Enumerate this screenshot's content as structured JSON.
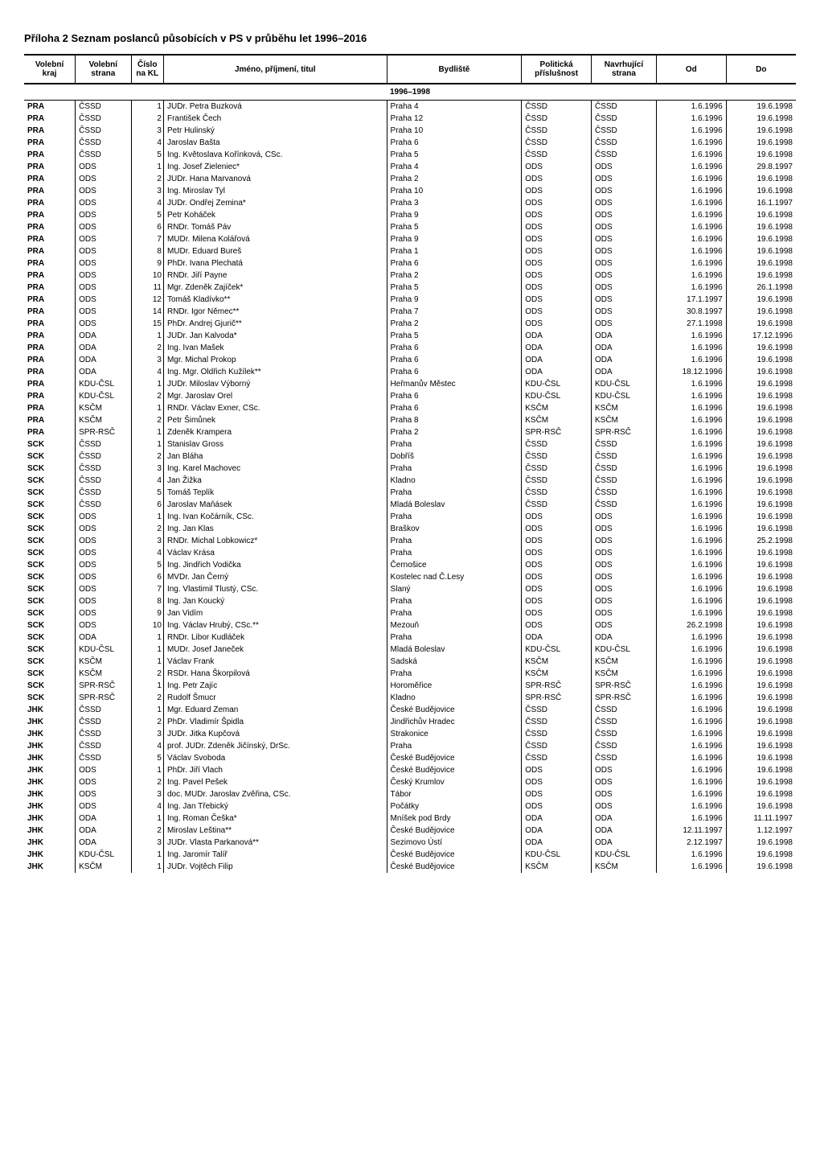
{
  "title": "Příloha 2  Seznam poslanců působících v PS v průběhu let 1996–2016",
  "headers": {
    "kraj": "Volební kraj",
    "strana": "Volební strana",
    "cislo": "Číslo na KL",
    "jmeno": "Jméno, příjmení, titul",
    "bydliste": "Bydliště",
    "prislusnost": "Politická příslušnost",
    "navrhujici": "Navrhující strana",
    "od": "Od",
    "do": "Do"
  },
  "period": "1996–1998",
  "rows": [
    {
      "kraj": "PRA",
      "strana": "ČSSD",
      "cislo": "1",
      "jmeno": "JUDr. Petra Buzková",
      "bydliste": "Praha 4",
      "prislusnost": "ČSSD",
      "navrhujici": "ČSSD",
      "od": "1.6.1996",
      "do": "19.6.1998"
    },
    {
      "kraj": "PRA",
      "strana": "ČSSD",
      "cislo": "2",
      "jmeno": "František Čech",
      "bydliste": "Praha 12",
      "prislusnost": "ČSSD",
      "navrhujici": "ČSSD",
      "od": "1.6.1996",
      "do": "19.6.1998"
    },
    {
      "kraj": "PRA",
      "strana": "ČSSD",
      "cislo": "3",
      "jmeno": "Petr Hulinský",
      "bydliste": "Praha 10",
      "prislusnost": "ČSSD",
      "navrhujici": "ČSSD",
      "od": "1.6.1996",
      "do": "19.6.1998"
    },
    {
      "kraj": "PRA",
      "strana": "ČSSD",
      "cislo": "4",
      "jmeno": "Jaroslav Bašta",
      "bydliste": "Praha 6",
      "prislusnost": "ČSSD",
      "navrhujici": "ČSSD",
      "od": "1.6.1996",
      "do": "19.6.1998"
    },
    {
      "kraj": "PRA",
      "strana": "ČSSD",
      "cislo": "5",
      "jmeno": "Ing. Květoslava Kořínková, CSc.",
      "bydliste": "Praha 5",
      "prislusnost": "ČSSD",
      "navrhujici": "ČSSD",
      "od": "1.6.1996",
      "do": "19.6.1998"
    },
    {
      "kraj": "PRA",
      "strana": "ODS",
      "cislo": "1",
      "jmeno": "Ing. Josef Zieleniec*",
      "bydliste": "Praha 4",
      "prislusnost": "ODS",
      "navrhujici": "ODS",
      "od": "1.6.1996",
      "do": "29.8.1997"
    },
    {
      "kraj": "PRA",
      "strana": "ODS",
      "cislo": "2",
      "jmeno": "JUDr. Hana Marvanová",
      "bydliste": "Praha 2",
      "prislusnost": "ODS",
      "navrhujici": "ODS",
      "od": "1.6.1996",
      "do": "19.6.1998"
    },
    {
      "kraj": "PRA",
      "strana": "ODS",
      "cislo": "3",
      "jmeno": "Ing. Miroslav Tyl",
      "bydliste": "Praha 10",
      "prislusnost": "ODS",
      "navrhujici": "ODS",
      "od": "1.6.1996",
      "do": "19.6.1998"
    },
    {
      "kraj": "PRA",
      "strana": "ODS",
      "cislo": "4",
      "jmeno": "JUDr. Ondřej Zemina*",
      "bydliste": "Praha 3",
      "prislusnost": "ODS",
      "navrhujici": "ODS",
      "od": "1.6.1996",
      "do": "16.1.1997"
    },
    {
      "kraj": "PRA",
      "strana": "ODS",
      "cislo": "5",
      "jmeno": "Petr Koháček",
      "bydliste": "Praha 9",
      "prislusnost": "ODS",
      "navrhujici": "ODS",
      "od": "1.6.1996",
      "do": "19.6.1998"
    },
    {
      "kraj": "PRA",
      "strana": "ODS",
      "cislo": "6",
      "jmeno": "RNDr. Tomáš Páv",
      "bydliste": "Praha 5",
      "prislusnost": "ODS",
      "navrhujici": "ODS",
      "od": "1.6.1996",
      "do": "19.6.1998"
    },
    {
      "kraj": "PRA",
      "strana": "ODS",
      "cislo": "7",
      "jmeno": "MUDr. Milena Kolářová",
      "bydliste": "Praha 9",
      "prislusnost": "ODS",
      "navrhujici": "ODS",
      "od": "1.6.1996",
      "do": "19.6.1998"
    },
    {
      "kraj": "PRA",
      "strana": "ODS",
      "cislo": "8",
      "jmeno": "MUDr. Eduard Bureš",
      "bydliste": "Praha 1",
      "prislusnost": "ODS",
      "navrhujici": "ODS",
      "od": "1.6.1996",
      "do": "19.6.1998"
    },
    {
      "kraj": "PRA",
      "strana": "ODS",
      "cislo": "9",
      "jmeno": "PhDr. Ivana Plechatá",
      "bydliste": "Praha 6",
      "prislusnost": "ODS",
      "navrhujici": "ODS",
      "od": "1.6.1996",
      "do": "19.6.1998"
    },
    {
      "kraj": "PRA",
      "strana": "ODS",
      "cislo": "10",
      "jmeno": "RNDr. Jiří Payne",
      "bydliste": "Praha 2",
      "prislusnost": "ODS",
      "navrhujici": "ODS",
      "od": "1.6.1996",
      "do": "19.6.1998"
    },
    {
      "kraj": "PRA",
      "strana": "ODS",
      "cislo": "11",
      "jmeno": "Mgr. Zdeněk Zajíček*",
      "bydliste": "Praha 5",
      "prislusnost": "ODS",
      "navrhujici": "ODS",
      "od": "1.6.1996",
      "do": "26.1.1998"
    },
    {
      "kraj": "PRA",
      "strana": "ODS",
      "cislo": "12",
      "jmeno": "Tomáš Kladívko**",
      "bydliste": "Praha 9",
      "prislusnost": "ODS",
      "navrhujici": "ODS",
      "od": "17.1.1997",
      "do": "19.6.1998"
    },
    {
      "kraj": "PRA",
      "strana": "ODS",
      "cislo": "14",
      "jmeno": "RNDr. Igor Němec**",
      "bydliste": "Praha 7",
      "prislusnost": "ODS",
      "navrhujici": "ODS",
      "od": "30.8.1997",
      "do": "19.6.1998"
    },
    {
      "kraj": "PRA",
      "strana": "ODS",
      "cislo": "15",
      "jmeno": "PhDr. Andrej Gjurič**",
      "bydliste": "Praha 2",
      "prislusnost": "ODS",
      "navrhujici": "ODS",
      "od": "27.1.1998",
      "do": "19.6.1998"
    },
    {
      "kraj": "PRA",
      "strana": "ODA",
      "cislo": "1",
      "jmeno": "JUDr. Jan Kalvoda*",
      "bydliste": "Praha 5",
      "prislusnost": "ODA",
      "navrhujici": "ODA",
      "od": "1.6.1996",
      "do": "17.12.1996"
    },
    {
      "kraj": "PRA",
      "strana": "ODA",
      "cislo": "2",
      "jmeno": "Ing. Ivan Mašek",
      "bydliste": "Praha 6",
      "prislusnost": "ODA",
      "navrhujici": "ODA",
      "od": "1.6.1996",
      "do": "19.6.1998"
    },
    {
      "kraj": "PRA",
      "strana": "ODA",
      "cislo": "3",
      "jmeno": "Mgr. Michal Prokop",
      "bydliste": "Praha 6",
      "prislusnost": "ODA",
      "navrhujici": "ODA",
      "od": "1.6.1996",
      "do": "19.6.1998"
    },
    {
      "kraj": "PRA",
      "strana": "ODA",
      "cislo": "4",
      "jmeno": "Ing. Mgr. Oldřich Kužílek**",
      "bydliste": "Praha 6",
      "prislusnost": "ODA",
      "navrhujici": "ODA",
      "od": "18.12.1996",
      "do": "19.6.1998"
    },
    {
      "kraj": "PRA",
      "strana": "KDU-ČSL",
      "cislo": "1",
      "jmeno": "JUDr. Miloslav Výborný",
      "bydliste": "Heřmanův Městec",
      "prislusnost": "KDU-ČSL",
      "navrhujici": "KDU-ČSL",
      "od": "1.6.1996",
      "do": "19.6.1998"
    },
    {
      "kraj": "PRA",
      "strana": "KDU-ČSL",
      "cislo": "2",
      "jmeno": "Mgr. Jaroslav Orel",
      "bydliste": "Praha 6",
      "prislusnost": "KDU-ČSL",
      "navrhujici": "KDU-ČSL",
      "od": "1.6.1996",
      "do": "19.6.1998"
    },
    {
      "kraj": "PRA",
      "strana": "KSČM",
      "cislo": "1",
      "jmeno": "RNDr. Václav Exner, CSc.",
      "bydliste": "Praha 6",
      "prislusnost": "KSČM",
      "navrhujici": "KSČM",
      "od": "1.6.1996",
      "do": "19.6.1998"
    },
    {
      "kraj": "PRA",
      "strana": "KSČM",
      "cislo": "2",
      "jmeno": "Petr Šimůnek",
      "bydliste": "Praha 8",
      "prislusnost": "KSČM",
      "navrhujici": "KSČM",
      "od": "1.6.1996",
      "do": "19.6.1998"
    },
    {
      "kraj": "PRA",
      "strana": "SPR-RSČ",
      "cislo": "1",
      "jmeno": "Zdeněk Krampera",
      "bydliste": "Praha 2",
      "prislusnost": "SPR-RSČ",
      "navrhujici": "SPR-RSČ",
      "od": "1.6.1996",
      "do": "19.6.1998"
    },
    {
      "kraj": "SCK",
      "strana": "ČSSD",
      "cislo": "1",
      "jmeno": "Stanislav Gross",
      "bydliste": "Praha",
      "prislusnost": "ČSSD",
      "navrhujici": "ČSSD",
      "od": "1.6.1996",
      "do": "19.6.1998"
    },
    {
      "kraj": "SCK",
      "strana": "ČSSD",
      "cislo": "2",
      "jmeno": "Jan Bláha",
      "bydliste": "Dobříš",
      "prislusnost": "ČSSD",
      "navrhujici": "ČSSD",
      "od": "1.6.1996",
      "do": "19.6.1998"
    },
    {
      "kraj": "SCK",
      "strana": "ČSSD",
      "cislo": "3",
      "jmeno": "Ing. Karel Machovec",
      "bydliste": "Praha",
      "prislusnost": "ČSSD",
      "navrhujici": "ČSSD",
      "od": "1.6.1996",
      "do": "19.6.1998"
    },
    {
      "kraj": "SCK",
      "strana": "ČSSD",
      "cislo": "4",
      "jmeno": "Jan Žižka",
      "bydliste": "Kladno",
      "prislusnost": "ČSSD",
      "navrhujici": "ČSSD",
      "od": "1.6.1996",
      "do": "19.6.1998"
    },
    {
      "kraj": "SCK",
      "strana": "ČSSD",
      "cislo": "5",
      "jmeno": "Tomáš Teplík",
      "bydliste": "Praha",
      "prislusnost": "ČSSD",
      "navrhujici": "ČSSD",
      "od": "1.6.1996",
      "do": "19.6.1998"
    },
    {
      "kraj": "SCK",
      "strana": "ČSSD",
      "cislo": "6",
      "jmeno": "Jaroslav Maňásek",
      "bydliste": "Mladá Boleslav",
      "prislusnost": "ČSSD",
      "navrhujici": "ČSSD",
      "od": "1.6.1996",
      "do": "19.6.1998"
    },
    {
      "kraj": "SCK",
      "strana": "ODS",
      "cislo": "1",
      "jmeno": "Ing. Ivan Kočárník, CSc.",
      "bydliste": "Praha",
      "prislusnost": "ODS",
      "navrhujici": "ODS",
      "od": "1.6.1996",
      "do": "19.6.1998"
    },
    {
      "kraj": "SCK",
      "strana": "ODS",
      "cislo": "2",
      "jmeno": "Ing. Jan Klas",
      "bydliste": "Braškov",
      "prislusnost": "ODS",
      "navrhujici": "ODS",
      "od": "1.6.1996",
      "do": "19.6.1998"
    },
    {
      "kraj": "SCK",
      "strana": "ODS",
      "cislo": "3",
      "jmeno": "RNDr. Michal Lobkowicz*",
      "bydliste": "Praha",
      "prislusnost": "ODS",
      "navrhujici": "ODS",
      "od": "1.6.1996",
      "do": "25.2.1998"
    },
    {
      "kraj": "SCK",
      "strana": "ODS",
      "cislo": "4",
      "jmeno": "Václav Krása",
      "bydliste": "Praha",
      "prislusnost": "ODS",
      "navrhujici": "ODS",
      "od": "1.6.1996",
      "do": "19.6.1998"
    },
    {
      "kraj": "SCK",
      "strana": "ODS",
      "cislo": "5",
      "jmeno": "Ing. Jindřich Vodička",
      "bydliste": "Černošice",
      "prislusnost": "ODS",
      "navrhujici": "ODS",
      "od": "1.6.1996",
      "do": "19.6.1998"
    },
    {
      "kraj": "SCK",
      "strana": "ODS",
      "cislo": "6",
      "jmeno": "MVDr. Jan Černý",
      "bydliste": "Kostelec nad Č.Lesy",
      "prislusnost": "ODS",
      "navrhujici": "ODS",
      "od": "1.6.1996",
      "do": "19.6.1998"
    },
    {
      "kraj": "SCK",
      "strana": "ODS",
      "cislo": "7",
      "jmeno": "Ing. Vlastimil Tlustý, CSc.",
      "bydliste": "Slaný",
      "prislusnost": "ODS",
      "navrhujici": "ODS",
      "od": "1.6.1996",
      "do": "19.6.1998"
    },
    {
      "kraj": "SCK",
      "strana": "ODS",
      "cislo": "8",
      "jmeno": "Ing. Jan Koucký",
      "bydliste": "Praha",
      "prislusnost": "ODS",
      "navrhujici": "ODS",
      "od": "1.6.1996",
      "do": "19.6.1998"
    },
    {
      "kraj": "SCK",
      "strana": "ODS",
      "cislo": "9",
      "jmeno": "Jan Vidím",
      "bydliste": "Praha",
      "prislusnost": "ODS",
      "navrhujici": "ODS",
      "od": "1.6.1996",
      "do": "19.6.1998"
    },
    {
      "kraj": "SCK",
      "strana": "ODS",
      "cislo": "10",
      "jmeno": "Ing. Václav Hrubý, CSc.**",
      "bydliste": "Mezouň",
      "prislusnost": "ODS",
      "navrhujici": "ODS",
      "od": "26.2.1998",
      "do": "19.6.1998"
    },
    {
      "kraj": "SCK",
      "strana": "ODA",
      "cislo": "1",
      "jmeno": "RNDr. Libor Kudláček",
      "bydliste": "Praha",
      "prislusnost": "ODA",
      "navrhujici": "ODA",
      "od": "1.6.1996",
      "do": "19.6.1998"
    },
    {
      "kraj": "SCK",
      "strana": "KDU-ČSL",
      "cislo": "1",
      "jmeno": "MUDr. Josef Janeček",
      "bydliste": "Mladá Boleslav",
      "prislusnost": "KDU-ČSL",
      "navrhujici": "KDU-ČSL",
      "od": "1.6.1996",
      "do": "19.6.1998"
    },
    {
      "kraj": "SCK",
      "strana": "KSČM",
      "cislo": "1",
      "jmeno": "Václav Frank",
      "bydliste": "Sadská",
      "prislusnost": "KSČM",
      "navrhujici": "KSČM",
      "od": "1.6.1996",
      "do": "19.6.1998"
    },
    {
      "kraj": "SCK",
      "strana": "KSČM",
      "cislo": "2",
      "jmeno": "RSDr. Hana Škorpilová",
      "bydliste": "Praha",
      "prislusnost": "KSČM",
      "navrhujici": "KSČM",
      "od": "1.6.1996",
      "do": "19.6.1998"
    },
    {
      "kraj": "SCK",
      "strana": "SPR-RSČ",
      "cislo": "1",
      "jmeno": "Ing. Petr Zajíc",
      "bydliste": "Horoměřice",
      "prislusnost": "SPR-RSČ",
      "navrhujici": "SPR-RSČ",
      "od": "1.6.1996",
      "do": "19.6.1998"
    },
    {
      "kraj": "SCK",
      "strana": "SPR-RSČ",
      "cislo": "2",
      "jmeno": "Rudolf Šmucr",
      "bydliste": "Kladno",
      "prislusnost": "SPR-RSČ",
      "navrhujici": "SPR-RSČ",
      "od": "1.6.1996",
      "do": "19.6.1998"
    },
    {
      "kraj": "JHK",
      "strana": "ČSSD",
      "cislo": "1",
      "jmeno": "Mgr. Eduard Zeman",
      "bydliste": "České Budějovice",
      "prislusnost": "ČSSD",
      "navrhujici": "ČSSD",
      "od": "1.6.1996",
      "do": "19.6.1998"
    },
    {
      "kraj": "JHK",
      "strana": "ČSSD",
      "cislo": "2",
      "jmeno": "PhDr. Vladimír Špidla",
      "bydliste": "Jindřichův Hradec",
      "prislusnost": "ČSSD",
      "navrhujici": "ČSSD",
      "od": "1.6.1996",
      "do": "19.6.1998"
    },
    {
      "kraj": "JHK",
      "strana": "ČSSD",
      "cislo": "3",
      "jmeno": "JUDr. Jitka Kupčová",
      "bydliste": "Strakonice",
      "prislusnost": "ČSSD",
      "navrhujici": "ČSSD",
      "od": "1.6.1996",
      "do": "19.6.1998"
    },
    {
      "kraj": "JHK",
      "strana": "ČSSD",
      "cislo": "4",
      "jmeno": "prof. JUDr. Zdeněk Jičínský, DrSc.",
      "bydliste": "Praha",
      "prislusnost": "ČSSD",
      "navrhujici": "ČSSD",
      "od": "1.6.1996",
      "do": "19.6.1998"
    },
    {
      "kraj": "JHK",
      "strana": "ČSSD",
      "cislo": "5",
      "jmeno": "Václav Svoboda",
      "bydliste": "České Budějovice",
      "prislusnost": "ČSSD",
      "navrhujici": "ČSSD",
      "od": "1.6.1996",
      "do": "19.6.1998"
    },
    {
      "kraj": "JHK",
      "strana": "ODS",
      "cislo": "1",
      "jmeno": "PhDr. Jiří Vlach",
      "bydliste": "České Budějovice",
      "prislusnost": "ODS",
      "navrhujici": "ODS",
      "od": "1.6.1996",
      "do": "19.6.1998"
    },
    {
      "kraj": "JHK",
      "strana": "ODS",
      "cislo": "2",
      "jmeno": "Ing. Pavel Pešek",
      "bydliste": "Český Krumlov",
      "prislusnost": "ODS",
      "navrhujici": "ODS",
      "od": "1.6.1996",
      "do": "19.6.1998"
    },
    {
      "kraj": "JHK",
      "strana": "ODS",
      "cislo": "3",
      "jmeno": "doc. MUDr. Jaroslav Zvěřina, CSc.",
      "bydliste": "Tábor",
      "prislusnost": "ODS",
      "navrhujici": "ODS",
      "od": "1.6.1996",
      "do": "19.6.1998"
    },
    {
      "kraj": "JHK",
      "strana": "ODS",
      "cislo": "4",
      "jmeno": "Ing. Jan Třebický",
      "bydliste": "Počátky",
      "prislusnost": "ODS",
      "navrhujici": "ODS",
      "od": "1.6.1996",
      "do": "19.6.1998"
    },
    {
      "kraj": "JHK",
      "strana": "ODA",
      "cislo": "1",
      "jmeno": "Ing. Roman Češka*",
      "bydliste": "Mníšek pod Brdy",
      "prislusnost": "ODA",
      "navrhujici": "ODA",
      "od": "1.6.1996",
      "do": "11.11.1997"
    },
    {
      "kraj": "JHK",
      "strana": "ODA",
      "cislo": "2",
      "jmeno": "Miroslav Leština**",
      "bydliste": "České Budějovice",
      "prislusnost": "ODA",
      "navrhujici": "ODA",
      "od": "12.11.1997",
      "do": "1.12.1997"
    },
    {
      "kraj": "JHK",
      "strana": "ODA",
      "cislo": "3",
      "jmeno": "JUDr. Vlasta Parkanová**",
      "bydliste": "Sezimovo Ústí",
      "prislusnost": "ODA",
      "navrhujici": "ODA",
      "od": "2.12.1997",
      "do": "19.6.1998"
    },
    {
      "kraj": "JHK",
      "strana": "KDU-ČSL",
      "cislo": "1",
      "jmeno": "Ing. Jaromír Talíř",
      "bydliste": "České Budějovice",
      "prislusnost": "KDU-ČSL",
      "navrhujici": "KDU-ČSL",
      "od": "1.6.1996",
      "do": "19.6.1998"
    },
    {
      "kraj": "JHK",
      "strana": "KSČM",
      "cislo": "1",
      "jmeno": "JUDr. Vojtěch Filip",
      "bydliste": "České Budějovice",
      "prislusnost": "KSČM",
      "navrhujici": "KSČM",
      "od": "1.6.1996",
      "do": "19.6.1998"
    }
  ]
}
